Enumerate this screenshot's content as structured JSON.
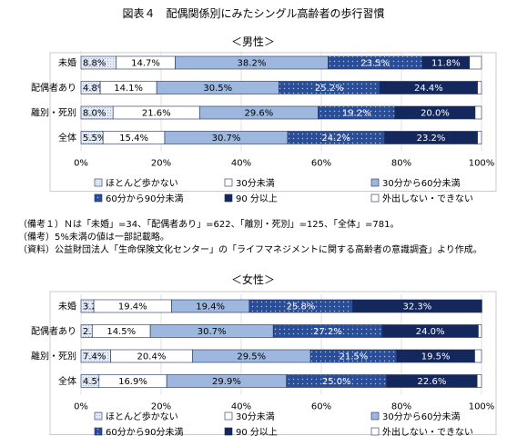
{
  "page": {
    "title": "図表４　配偶関係別にみたシングル高齢者の歩行習慣",
    "notes": [
      "（備考１）Ｎは「未婚」=34、「配偶者あり」=622、「離別・死別」=125、「全体」=781。",
      "（備考）5%未満の値は一部記載略。",
      "（資料）公益財団法人「生命保険文化センター」の「ライフマネジメントに関する高齢者の意識調査」より作成。"
    ]
  },
  "legend": {
    "items": [
      {
        "label": "ほとんど歩かない",
        "color": "#dde6f3"
      },
      {
        "label": "30分未満",
        "color": "#ffffff"
      },
      {
        "label": "30分から60分未満",
        "color": "#9db7df"
      },
      {
        "label": "60分から90分未満",
        "color": "#2c4f97"
      },
      {
        "label": "90 分以上",
        "color": "#15285d"
      },
      {
        "label": "外出しない・できない",
        "color": "#ffffff"
      }
    ]
  },
  "chart_data": [
    {
      "type": "bar",
      "orientation": "horizontal",
      "stacked": true,
      "subtitle": "＜男性＞",
      "categories": [
        "未婚",
        "配偶者あり",
        "離別・死別",
        "全体"
      ],
      "series": [
        {
          "name": "ほとんど歩かない",
          "values": [
            8.8,
            4.8,
            8.0,
            5.5
          ]
        },
        {
          "name": "30分未満",
          "values": [
            14.7,
            14.1,
            21.6,
            15.4
          ]
        },
        {
          "name": "30分から60分未満",
          "values": [
            38.2,
            30.5,
            29.6,
            30.7
          ]
        },
        {
          "name": "60分から90分未満",
          "values": [
            23.5,
            25.2,
            19.2,
            24.2
          ]
        },
        {
          "name": "90 分以上",
          "values": [
            11.8,
            24.4,
            20.0,
            23.2
          ]
        },
        {
          "name": "外出しない・できない",
          "values": [
            3.0,
            1.0,
            1.6,
            1.0
          ]
        }
      ],
      "xlim": [
        0,
        100
      ],
      "xticks": [
        "0%",
        "20%",
        "40%",
        "60%",
        "80%",
        "100%"
      ],
      "legend_position": "bottom"
    },
    {
      "type": "bar",
      "orientation": "horizontal",
      "stacked": true,
      "subtitle": "＜女性＞",
      "categories": [
        "未婚",
        "配偶者あり",
        "離別・死別",
        "全体"
      ],
      "series": [
        {
          "name": "ほとんど歩かない",
          "values": [
            3.2,
            2.8,
            7.4,
            4.5
          ]
        },
        {
          "name": "30分未満",
          "values": [
            19.4,
            14.5,
            20.4,
            16.9
          ]
        },
        {
          "name": "30分から60分未満",
          "values": [
            19.4,
            30.7,
            29.5,
            29.9
          ]
        },
        {
          "name": "60分から90分未満",
          "values": [
            25.8,
            27.2,
            21.5,
            25.0
          ]
        },
        {
          "name": "90 分以上",
          "values": [
            32.3,
            24.0,
            19.5,
            22.6
          ]
        },
        {
          "name": "外出しない・できない",
          "values": [
            0.0,
            0.8,
            1.7,
            1.1
          ]
        }
      ],
      "xlim": [
        0,
        100
      ],
      "xticks": [
        "0%",
        "20%",
        "40%",
        "60%",
        "80%",
        "100%"
      ],
      "legend_position": "bottom"
    }
  ]
}
